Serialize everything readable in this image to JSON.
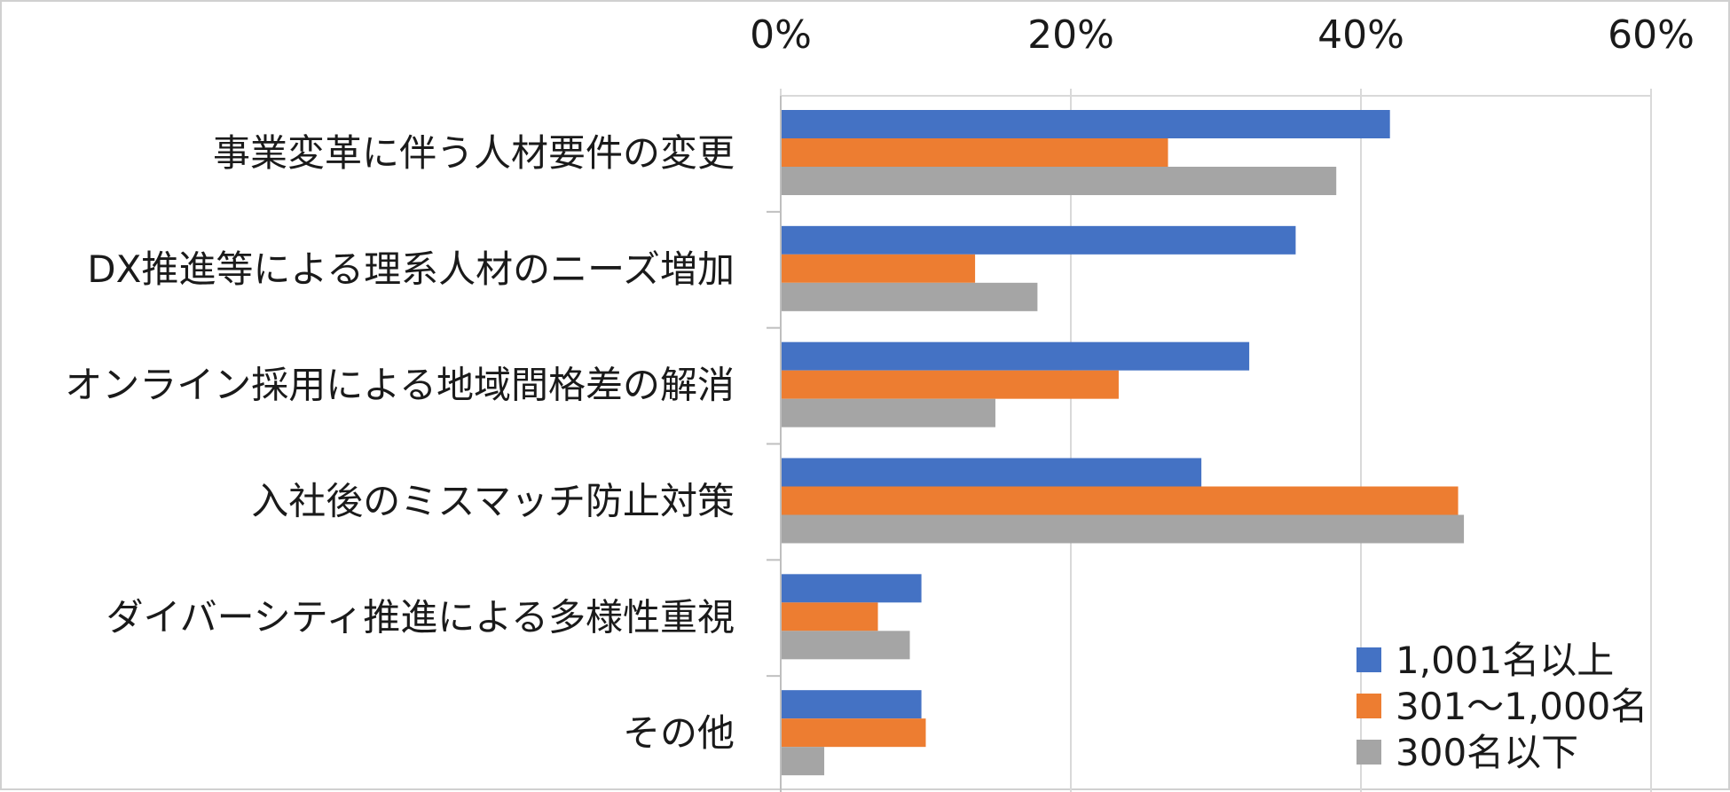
{
  "chart_data": {
    "type": "bar",
    "orientation": "horizontal",
    "title": "",
    "xlabel": "",
    "ylabel": "",
    "xlim": [
      0,
      60
    ],
    "x_ticks": [
      "0%",
      "20%",
      "40%",
      "60%"
    ],
    "x_tick_values": [
      0,
      20,
      40,
      60
    ],
    "x_axis_position": "top",
    "grid": true,
    "legend_position": "bottom-right",
    "categories": [
      "事業変革に伴う人材要件の変更",
      "DX推進等による理系人材のニーズ増加",
      "オンライン採用による地域間格差の解消",
      "入社後のミスマッチ防止対策",
      "ダイバーシティ推進による多様性重視",
      "その他"
    ],
    "series": [
      {
        "name": "1,001名以上",
        "color": "#4472c4",
        "values": [
          42,
          35.5,
          32.3,
          29,
          9.7,
          9.7
        ]
      },
      {
        "name": "301～1,000名",
        "color": "#ed7d31",
        "values": [
          26.7,
          13.4,
          23.3,
          46.7,
          6.7,
          10
        ]
      },
      {
        "name": "300名以下",
        "color": "#a5a5a5",
        "values": [
          38.3,
          17.7,
          14.8,
          47.1,
          8.9,
          3
        ]
      }
    ]
  }
}
